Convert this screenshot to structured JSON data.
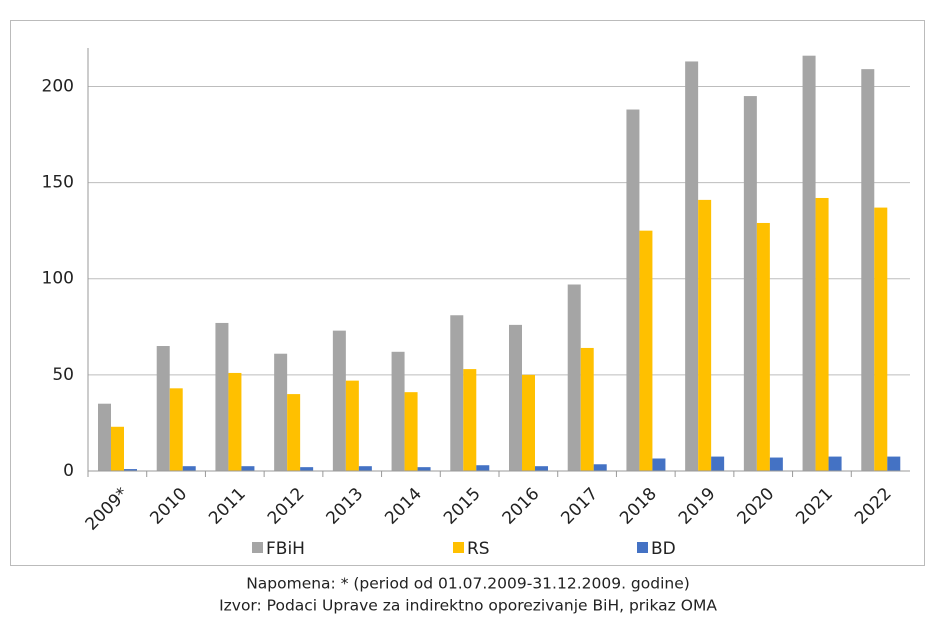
{
  "chart_data": {
    "type": "bar",
    "categories": [
      "2009*",
      "2010",
      "2011",
      "2012",
      "2013",
      "2014",
      "2015",
      "2016",
      "2017",
      "2018",
      "2019",
      "2020",
      "2021",
      "2022"
    ],
    "series": [
      {
        "name": "FBiH",
        "color": "#a5a5a5",
        "values": [
          35,
          65,
          77,
          61,
          73,
          62,
          81,
          76,
          97,
          188,
          213,
          195,
          216,
          209
        ]
      },
      {
        "name": "RS",
        "color": "#ffc000",
        "values": [
          23,
          43,
          51,
          40,
          47,
          41,
          53,
          50,
          64,
          125,
          141,
          129,
          142,
          137
        ]
      },
      {
        "name": "BD",
        "color": "#4472c4",
        "values": [
          1,
          2.5,
          2.5,
          2,
          2.5,
          2,
          3,
          2.5,
          3.5,
          6.5,
          7.5,
          7,
          7.5,
          7.5
        ]
      }
    ],
    "ylim": [
      0,
      220
    ],
    "yticks": [
      0,
      50,
      100,
      150,
      200
    ],
    "grid": true,
    "legend": "bottom",
    "annotations": [
      "Napomena: * (period od 01.07.2009-31.12.2009. godine)",
      "Izvor: Podaci Uprave za indirektno oporezivanje BiH, prikaz OMA"
    ]
  }
}
